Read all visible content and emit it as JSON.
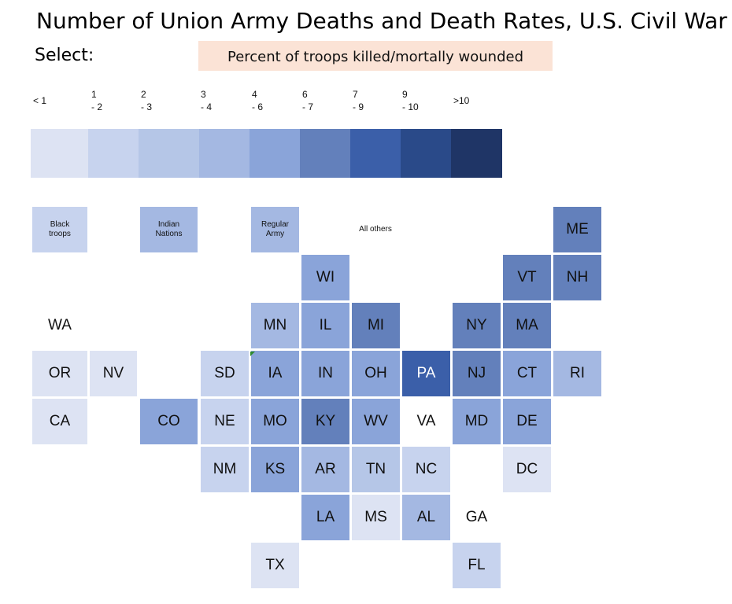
{
  "title": "Number of Union Army Deaths and Death Rates, U.S. Civil War",
  "select_label": "Select:",
  "metric_button": "Percent of troops killed/mortally wounded",
  "chart_data": {
    "type": "heatmap",
    "legend": [
      {
        "label": "< 1",
        "color": "#dde3f3"
      },
      {
        "label": "1\n- 2",
        "color": "#c7d3ee"
      },
      {
        "label": "2\n- 3",
        "color": "#b5c6e7"
      },
      {
        "label": "3\n- 4",
        "color": "#a4b8e2"
      },
      {
        "label": "4\n- 6",
        "color": "#8aa4d9"
      },
      {
        "label": "6\n- 7",
        "color": "#6380bb"
      },
      {
        "label": "7\n- 9",
        "color": "#3b5fa9"
      },
      {
        "label": "9\n- 10",
        "color": "#2a4a89"
      },
      {
        "label": ">10",
        "color": "#1f3566"
      }
    ],
    "tiles": [
      {
        "id": "black-troops",
        "label": "Black\ntroops",
        "bin": 1,
        "col": 0,
        "row": 0
      },
      {
        "id": "indian-nations",
        "label": "Indian\nNations",
        "bin": 3,
        "col": 2,
        "row": 0
      },
      {
        "id": "regular-army",
        "label": "Regular\nArmy",
        "bin": 3,
        "col": 4,
        "row": 0
      },
      {
        "id": "all-others",
        "label": "All others",
        "bin": null,
        "col": 6,
        "row": 0
      },
      {
        "id": "me",
        "label": "ME",
        "bin": 5,
        "col": 10,
        "row": 0
      },
      {
        "id": "wi",
        "label": "WI",
        "bin": 4,
        "col": 5,
        "row": 1
      },
      {
        "id": "vt",
        "label": "VT",
        "bin": 5,
        "col": 9,
        "row": 1
      },
      {
        "id": "nh",
        "label": "NH",
        "bin": 5,
        "col": 10,
        "row": 1
      },
      {
        "id": "wa",
        "label": "WA",
        "bin": null,
        "col": 0,
        "row": 2
      },
      {
        "id": "mn",
        "label": "MN",
        "bin": 3,
        "col": 4,
        "row": 2
      },
      {
        "id": "il",
        "label": "IL",
        "bin": 4,
        "col": 5,
        "row": 2
      },
      {
        "id": "mi",
        "label": "MI",
        "bin": 5,
        "col": 6,
        "row": 2
      },
      {
        "id": "ny",
        "label": "NY",
        "bin": 5,
        "col": 8,
        "row": 2
      },
      {
        "id": "ma",
        "label": "MA",
        "bin": 5,
        "col": 9,
        "row": 2
      },
      {
        "id": "or",
        "label": "OR",
        "bin": 0,
        "col": 0,
        "row": 3
      },
      {
        "id": "nv",
        "label": "NV",
        "bin": 0,
        "col": 1,
        "row": 3
      },
      {
        "id": "sd",
        "label": "SD",
        "bin": 1,
        "col": 3,
        "row": 3
      },
      {
        "id": "ia",
        "label": "IA",
        "bin": 4,
        "col": 4,
        "row": 3
      },
      {
        "id": "in",
        "label": "IN",
        "bin": 4,
        "col": 5,
        "row": 3
      },
      {
        "id": "oh",
        "label": "OH",
        "bin": 4,
        "col": 6,
        "row": 3
      },
      {
        "id": "pa",
        "label": "PA",
        "bin": 6,
        "col": 7,
        "row": 3
      },
      {
        "id": "nj",
        "label": "NJ",
        "bin": 5,
        "col": 8,
        "row": 3
      },
      {
        "id": "ct",
        "label": "CT",
        "bin": 4,
        "col": 9,
        "row": 3
      },
      {
        "id": "ri",
        "label": "RI",
        "bin": 3,
        "col": 10,
        "row": 3
      },
      {
        "id": "ca",
        "label": "CA",
        "bin": 0,
        "col": 0,
        "row": 4
      },
      {
        "id": "co",
        "label": "CO",
        "bin": 4,
        "col": 2,
        "row": 4
      },
      {
        "id": "ne",
        "label": "NE",
        "bin": 1,
        "col": 3,
        "row": 4
      },
      {
        "id": "mo",
        "label": "MO",
        "bin": 4,
        "col": 4,
        "row": 4
      },
      {
        "id": "ky",
        "label": "KY",
        "bin": 5,
        "col": 5,
        "row": 4
      },
      {
        "id": "wv",
        "label": "WV",
        "bin": 4,
        "col": 6,
        "row": 4
      },
      {
        "id": "va",
        "label": "VA",
        "bin": null,
        "col": 7,
        "row": 4
      },
      {
        "id": "md",
        "label": "MD",
        "bin": 4,
        "col": 8,
        "row": 4
      },
      {
        "id": "de",
        "label": "DE",
        "bin": 4,
        "col": 9,
        "row": 4
      },
      {
        "id": "nm",
        "label": "NM",
        "bin": 1,
        "col": 3,
        "row": 5
      },
      {
        "id": "ks",
        "label": "KS",
        "bin": 4,
        "col": 4,
        "row": 5
      },
      {
        "id": "ar",
        "label": "AR",
        "bin": 3,
        "col": 5,
        "row": 5
      },
      {
        "id": "tn",
        "label": "TN",
        "bin": 2,
        "col": 6,
        "row": 5
      },
      {
        "id": "nc",
        "label": "NC",
        "bin": 1,
        "col": 7,
        "row": 5
      },
      {
        "id": "dc",
        "label": "DC",
        "bin": 0,
        "col": 9,
        "row": 5
      },
      {
        "id": "la",
        "label": "LA",
        "bin": 4,
        "col": 5,
        "row": 6
      },
      {
        "id": "ms",
        "label": "MS",
        "bin": 0,
        "col": 6,
        "row": 6
      },
      {
        "id": "al",
        "label": "AL",
        "bin": 3,
        "col": 7,
        "row": 6
      },
      {
        "id": "ga",
        "label": "GA",
        "bin": null,
        "col": 8,
        "row": 6
      },
      {
        "id": "tx",
        "label": "TX",
        "bin": 0,
        "col": 4,
        "row": 7
      },
      {
        "id": "fl",
        "label": "FL",
        "bin": 1,
        "col": 8,
        "row": 7
      }
    ]
  }
}
